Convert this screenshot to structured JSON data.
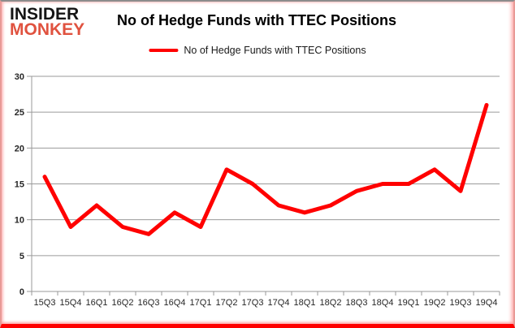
{
  "logo": {
    "line1": "INSIDER",
    "line2": "MONKEY"
  },
  "header": {
    "title": "No of Hedge Funds with TTEC Positions"
  },
  "legend": {
    "label": "No of Hedge Funds with TTEC Positions"
  },
  "colors": {
    "line": "#ff0000",
    "logo_accent": "#e0523f",
    "grid": "#9a9a9a",
    "axis_text": "#262626",
    "border_bottom": "#ff0000",
    "border_top": "#8c8c8c"
  },
  "chart_data": {
    "type": "line",
    "title": "No of Hedge Funds with TTEC Positions",
    "xlabel": "",
    "ylabel": "",
    "categories": [
      "15Q3",
      "15Q4",
      "16Q1",
      "16Q2",
      "16Q3",
      "16Q4",
      "17Q1",
      "17Q2",
      "17Q3",
      "17Q4",
      "18Q1",
      "18Q2",
      "18Q3",
      "18Q4",
      "19Q1",
      "19Q2",
      "19Q3",
      "19Q4"
    ],
    "series": [
      {
        "name": "No of Hedge Funds with TTEC Positions",
        "values": [
          16,
          9,
          12,
          9,
          8,
          11,
          9,
          17,
          15,
          12,
          11,
          12,
          14,
          15,
          15,
          17,
          14,
          26
        ]
      }
    ],
    "ylim": [
      0,
      30
    ],
    "yticks": [
      0,
      5,
      10,
      15,
      20,
      25,
      30
    ],
    "grid": true,
    "legend_position": "top-center"
  }
}
